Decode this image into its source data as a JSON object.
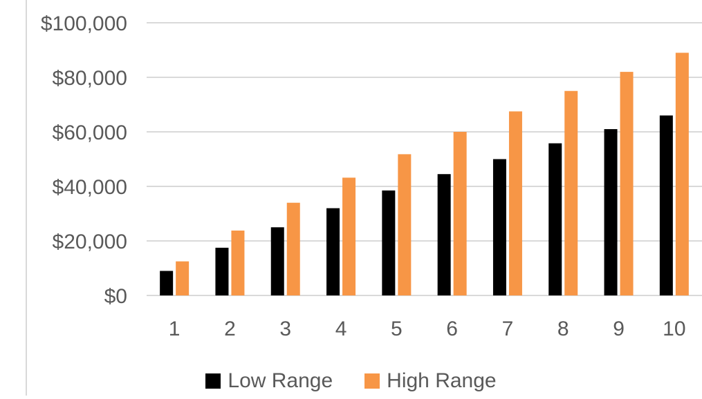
{
  "chart_data": {
    "type": "bar",
    "categories": [
      "1",
      "2",
      "3",
      "4",
      "5",
      "6",
      "7",
      "8",
      "9",
      "10"
    ],
    "series": [
      {
        "name": "Low Range",
        "color": "#000000",
        "values": [
          9000,
          17500,
          25000,
          32000,
          38500,
          44500,
          50000,
          55800,
          61000,
          66000
        ]
      },
      {
        "name": "High Range",
        "color": "#F79646",
        "values": [
          12500,
          23800,
          34000,
          43200,
          51800,
          60000,
          67500,
          75000,
          82000,
          89000
        ]
      }
    ],
    "ylim": [
      0,
      100000
    ],
    "yticks": [
      0,
      20000,
      40000,
      60000,
      80000,
      100000
    ],
    "ytick_labels": [
      "$0",
      "$20,000",
      "$40,000",
      "$60,000",
      "$80,000",
      "$100,000"
    ],
    "grid": true,
    "legend_position": "bottom",
    "title": "",
    "xlabel": "",
    "ylabel": ""
  },
  "colors": {
    "gridline": "#D9D9D9",
    "axis_text": "#595959",
    "frame_line": "#D9D9D9"
  }
}
